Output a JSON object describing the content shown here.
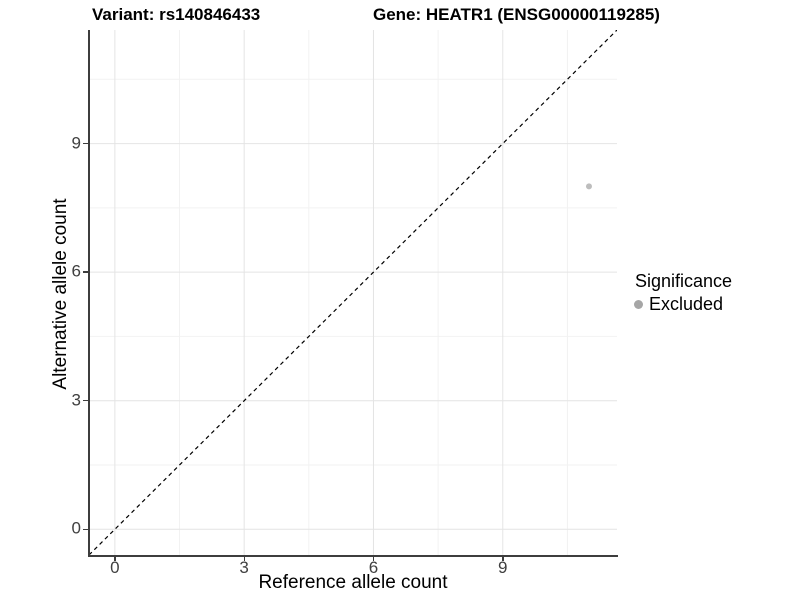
{
  "title": {
    "variant": "Variant: rs140846433",
    "gene": "Gene: HEATR1 (ENSG00000119285)"
  },
  "axes": {
    "x": {
      "label": "Reference allele count",
      "ticks": [
        "0",
        "3",
        "6",
        "9"
      ]
    },
    "y": {
      "label": "Alternative allele count",
      "ticks": [
        "0",
        "3",
        "6",
        "9"
      ]
    }
  },
  "legend": {
    "title": "Significance",
    "items": [
      {
        "label": "Excluded",
        "color": "#a6a6a6"
      }
    ]
  },
  "colors": {
    "axis_line": "#3d3d3d",
    "grid_major": "#e4e4e4",
    "grid_minor": "#f2f2f2",
    "tick_text": "#404040",
    "point": "#bdbdbd",
    "identity_line": "#000000"
  },
  "chart_data": {
    "type": "scatter",
    "title": "Variant: rs140846433 | Gene: HEATR1 (ENSG00000119285)",
    "xlabel": "Reference allele count",
    "ylabel": "Alternative allele count",
    "xlim": [
      -0.6,
      11.65
    ],
    "ylim": [
      -0.6,
      11.65
    ],
    "x_ticks": [
      0,
      3,
      6,
      9
    ],
    "y_ticks": [
      0,
      3,
      6,
      9
    ],
    "x_minor": [
      1.5,
      4.5,
      7.5,
      10.5
    ],
    "y_minor": [
      1.5,
      4.5,
      7.5,
      10.5
    ],
    "grid": "major+minor",
    "legend_position": "right",
    "series": [
      {
        "name": "Excluded",
        "color": "#bdbdbd",
        "points": [
          [
            11,
            8
          ]
        ]
      }
    ],
    "reference_line": {
      "type": "identity",
      "equation": "y = x",
      "style": "dashed",
      "color": "#000000"
    }
  }
}
